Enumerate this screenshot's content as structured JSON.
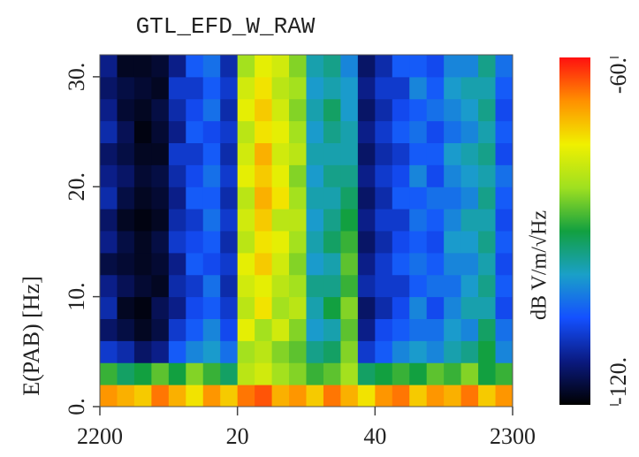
{
  "chart_data": {
    "type": "heatmap",
    "title": "GTL_EFD_W_RAW",
    "ylabel": "E(PAB)  [Hz]",
    "colorbar_label": "dB V/m/√Hz",
    "xlim": [
      0,
      60
    ],
    "xticks": [
      {
        "value": 0,
        "label": "2200"
      },
      20,
      40,
      {
        "value": 60,
        "label": "2300"
      }
    ],
    "ylim": [
      0,
      32
    ],
    "yticks": [
      {
        "value": 0,
        "label": "0."
      },
      {
        "value": 10,
        "label": "10."
      },
      {
        "value": 20,
        "label": "20."
      },
      {
        "value": 30,
        "label": "30."
      }
    ],
    "zlim": [
      -120,
      -60
    ],
    "zticks": [
      {
        "value": -120,
        "label": "-120."
      },
      {
        "value": -60,
        "label": "-60."
      }
    ],
    "colormap": [
      "#000000",
      "#0a1a80",
      "#1450ff",
      "#1aa0c8",
      "#12a040",
      "#9fe020",
      "#f0f000",
      "#ff9000",
      "#ff1010"
    ],
    "x_edges": [
      0,
      2.5,
      5,
      7.5,
      10,
      12.5,
      15,
      17.5,
      20,
      22.5,
      25,
      27.5,
      30,
      32.5,
      35,
      37.5,
      40,
      42.5,
      45,
      47.5,
      50,
      52.5,
      55,
      57.5,
      60
    ],
    "y_edges": [
      0,
      2,
      4,
      6,
      8,
      10,
      12,
      14,
      16,
      18,
      20,
      22,
      24,
      26,
      28,
      30,
      32
    ],
    "z": [
      [
        -68,
        -70,
        -72,
        -66,
        -70,
        -74,
        -68,
        -72,
        -66,
        -64,
        -70,
        -68,
        -72,
        -66,
        -70,
        -74,
        -68,
        -66,
        -72,
        -68,
        -70,
        -66,
        -72,
        -68
      ],
      [
        -88,
        -92,
        -90,
        -86,
        -90,
        -84,
        -88,
        -92,
        -80,
        -78,
        -82,
        -84,
        -88,
        -86,
        -82,
        -92,
        -90,
        -88,
        -90,
        -86,
        -88,
        -84,
        -90,
        -88
      ],
      [
        -108,
        -110,
        -114,
        -112,
        -104,
        -100,
        -98,
        -102,
        -82,
        -80,
        -84,
        -86,
        -94,
        -92,
        -84,
        -108,
        -104,
        -100,
        -98,
        -100,
        -96,
        -94,
        -90,
        -100
      ],
      [
        -114,
        -116,
        -118,
        -116,
        -108,
        -104,
        -100,
        -106,
        -76,
        -82,
        -78,
        -84,
        -98,
        -96,
        -86,
        -112,
        -106,
        -104,
        -102,
        -102,
        -98,
        -100,
        -92,
        -102
      ],
      [
        -110,
        -118,
        -119,
        -115,
        -112,
        -106,
        -104,
        -108,
        -80,
        -74,
        -82,
        -80,
        -96,
        -90,
        -84,
        -114,
        -110,
        -106,
        -100,
        -106,
        -100,
        -96,
        -96,
        -106
      ],
      [
        -112,
        -115,
        -117,
        -118,
        -110,
        -108,
        -102,
        -110,
        -78,
        -76,
        -80,
        -82,
        -94,
        -94,
        -88,
        -110,
        -108,
        -108,
        -104,
        -102,
        -102,
        -98,
        -94,
        -104
      ],
      [
        -116,
        -117,
        -118,
        -117,
        -112,
        -104,
        -106,
        -108,
        -76,
        -72,
        -78,
        -84,
        -98,
        -96,
        -86,
        -112,
        -108,
        -104,
        -102,
        -104,
        -100,
        -100,
        -96,
        -106
      ],
      [
        -112,
        -116,
        -118,
        -116,
        -108,
        -106,
        -104,
        -110,
        -80,
        -74,
        -76,
        -82,
        -96,
        -92,
        -88,
        -114,
        -110,
        -106,
        -104,
        -106,
        -98,
        -98,
        -94,
        -104
      ],
      [
        -114,
        -118,
        -119,
        -118,
        -110,
        -108,
        -102,
        -108,
        -78,
        -72,
        -80,
        -80,
        -98,
        -94,
        -90,
        -112,
        -108,
        -108,
        -102,
        -104,
        -100,
        -96,
        -96,
        -106
      ],
      [
        -110,
        -116,
        -118,
        -117,
        -112,
        -104,
        -104,
        -110,
        -80,
        -70,
        -74,
        -82,
        -96,
        -96,
        -92,
        -114,
        -110,
        -104,
        -104,
        -102,
        -102,
        -100,
        -94,
        -104
      ],
      [
        -112,
        -114,
        -117,
        -116,
        -110,
        -106,
        -102,
        -108,
        -76,
        -72,
        -76,
        -84,
        -98,
        -94,
        -94,
        -112,
        -108,
        -106,
        -100,
        -106,
        -100,
        -98,
        -96,
        -102
      ],
      [
        -114,
        -116,
        -118,
        -118,
        -108,
        -108,
        -104,
        -110,
        -78,
        -70,
        -78,
        -80,
        -96,
        -96,
        -96,
        -114,
        -110,
        -108,
        -104,
        -104,
        -98,
        -96,
        -94,
        -106
      ],
      [
        -110,
        -115,
        -119,
        -117,
        -112,
        -104,
        -106,
        -108,
        -80,
        -74,
        -76,
        -82,
        -98,
        -94,
        -96,
        -112,
        -108,
        -104,
        -102,
        -106,
        -102,
        -100,
        -96,
        -104
      ],
      [
        -112,
        -117,
        -118,
        -116,
        -110,
        -106,
        -102,
        -110,
        -76,
        -72,
        -78,
        -84,
        -96,
        -92,
        -98,
        -114,
        -110,
        -106,
        -104,
        -102,
        -100,
        -98,
        -94,
        -106
      ],
      [
        -114,
        -116,
        -117,
        -118,
        -108,
        -108,
        -104,
        -108,
        -78,
        -74,
        -80,
        -82,
        -98,
        -96,
        -98,
        -112,
        -108,
        -108,
        -100,
        -104,
        -98,
        -96,
        -96,
        -104
      ],
      [
        -112,
        -118,
        -118,
        -117,
        -112,
        -104,
        -102,
        -110,
        -82,
        -76,
        -78,
        -84,
        -96,
        -94,
        -100,
        -114,
        -110,
        -104,
        -104,
        -106,
        -100,
        -100,
        -94,
        -102
      ]
    ]
  }
}
